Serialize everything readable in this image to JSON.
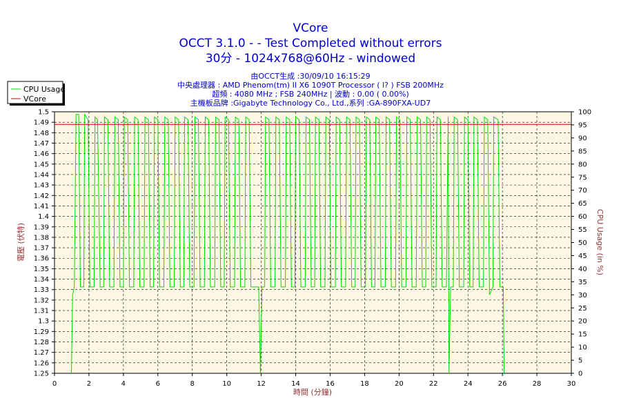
{
  "chart_data": {
    "type": "line",
    "title": "VCore",
    "subtitle_lines": [
      "OCCT 3.1.0 -   - Test Completed without errors",
      "30分 - 1024x768@60Hz - windowed"
    ],
    "info_lines": [
      "由OCCT生成 :30/09/10 16:15:29",
      "中央處理器 : AMD Phenom(tm) II X6 1090T Processor (   l? ) FSB 200MHz",
      "超頻 : 4080 MHz ; FSB 240MHz | 波動 : 0.00 ( 0.00%)",
      "主機板品牌 :Gigabyte Technology Co., Ltd.,系列 :GA-890FXA-UD7"
    ],
    "xlabel": "時間 (分鐘)",
    "ylabel_left": "電壓 (伏特)",
    "ylabel_right": "CPU Usage (in %)",
    "xlim": [
      0,
      30
    ],
    "ylim_left": [
      1.25,
      1.5
    ],
    "ylim_right": [
      0,
      100
    ],
    "x_ticks": [
      "0",
      "2",
      "4",
      "6",
      "8",
      "10",
      "12",
      "14",
      "16",
      "18",
      "20",
      "22",
      "24",
      "26",
      "28",
      "30"
    ],
    "y_left_ticks": [
      "1.5",
      "1.49",
      "1.48",
      "1.47",
      "1.46",
      "1.45",
      "1.44",
      "1.43",
      "1.42",
      "1.41",
      "1.4",
      "1.39",
      "1.38",
      "1.37",
      "1.36",
      "1.35",
      "1.34",
      "1.33",
      "1.32",
      "1.31",
      "1.3",
      "1.29",
      "1.28",
      "1.27",
      "1.26",
      "1.25"
    ],
    "y_right_ticks": [
      "100",
      "95",
      "90",
      "85",
      "80",
      "75",
      "70",
      "65",
      "60",
      "55",
      "50",
      "45",
      "40",
      "35",
      "30",
      "25",
      "20",
      "15",
      "10",
      "5",
      "0"
    ],
    "grid": true,
    "legend_position": "top-left",
    "series": [
      {
        "name": "CPU Usage",
        "axis": "right",
        "color": "#00dd00",
        "points": [
          [
            0.98,
            0
          ],
          [
            1.05,
            30
          ],
          [
            1.15,
            33
          ],
          [
            1.25,
            99
          ],
          [
            1.4,
            99
          ],
          [
            1.5,
            33
          ],
          [
            1.7,
            33
          ],
          [
            1.75,
            99
          ],
          [
            1.95,
            97
          ],
          [
            2.05,
            33
          ],
          [
            2.3,
            33
          ],
          [
            2.35,
            98
          ],
          [
            2.5,
            97
          ],
          [
            2.65,
            33
          ],
          [
            2.85,
            33
          ],
          [
            2.9,
            98
          ],
          [
            3.1,
            97
          ],
          [
            3.2,
            33
          ],
          [
            3.45,
            33
          ],
          [
            3.5,
            98
          ],
          [
            3.7,
            97
          ],
          [
            3.8,
            33
          ],
          [
            4.0,
            33
          ],
          [
            4.05,
            98
          ],
          [
            4.25,
            97
          ],
          [
            4.35,
            33
          ],
          [
            4.6,
            33
          ],
          [
            4.65,
            98
          ],
          [
            4.85,
            97
          ],
          [
            4.95,
            33
          ],
          [
            5.2,
            33
          ],
          [
            5.25,
            98
          ],
          [
            5.45,
            97
          ],
          [
            5.55,
            33
          ],
          [
            5.75,
            33
          ],
          [
            5.8,
            98
          ],
          [
            6.0,
            97
          ],
          [
            6.1,
            33
          ],
          [
            6.35,
            33
          ],
          [
            6.4,
            98
          ],
          [
            6.6,
            97
          ],
          [
            6.7,
            33
          ],
          [
            6.95,
            33
          ],
          [
            7.0,
            98
          ],
          [
            7.2,
            97
          ],
          [
            7.3,
            33
          ],
          [
            7.5,
            33
          ],
          [
            7.55,
            98
          ],
          [
            7.75,
            97
          ],
          [
            7.85,
            33
          ],
          [
            8.1,
            33
          ],
          [
            8.15,
            98
          ],
          [
            8.35,
            97
          ],
          [
            8.45,
            33
          ],
          [
            8.7,
            33
          ],
          [
            8.75,
            98
          ],
          [
            8.95,
            97
          ],
          [
            9.05,
            33
          ],
          [
            9.3,
            33
          ],
          [
            9.35,
            98
          ],
          [
            9.55,
            97
          ],
          [
            9.65,
            33
          ],
          [
            9.85,
            33
          ],
          [
            9.9,
            98
          ],
          [
            10.1,
            97
          ],
          [
            10.2,
            33
          ],
          [
            10.45,
            33
          ],
          [
            10.5,
            98
          ],
          [
            10.7,
            97
          ],
          [
            10.8,
            33
          ],
          [
            11.05,
            33
          ],
          [
            11.1,
            98
          ],
          [
            11.3,
            97
          ],
          [
            11.4,
            33
          ],
          [
            11.85,
            33
          ],
          [
            11.95,
            0
          ],
          [
            12.05,
            33
          ],
          [
            12.2,
            33
          ],
          [
            12.25,
            98
          ],
          [
            12.45,
            97
          ],
          [
            12.55,
            33
          ],
          [
            12.8,
            33
          ],
          [
            12.85,
            98
          ],
          [
            13.05,
            97
          ],
          [
            13.15,
            33
          ],
          [
            13.4,
            33
          ],
          [
            13.45,
            98
          ],
          [
            13.65,
            97
          ],
          [
            13.75,
            33
          ],
          [
            13.95,
            33
          ],
          [
            14.0,
            98
          ],
          [
            14.2,
            97
          ],
          [
            14.3,
            33
          ],
          [
            14.55,
            33
          ],
          [
            14.6,
            98
          ],
          [
            14.8,
            97
          ],
          [
            14.9,
            33
          ],
          [
            15.1,
            33
          ],
          [
            15.15,
            98
          ],
          [
            15.35,
            97
          ],
          [
            15.45,
            33
          ],
          [
            15.7,
            33
          ],
          [
            15.75,
            98
          ],
          [
            15.95,
            97
          ],
          [
            16.05,
            33
          ],
          [
            16.3,
            33
          ],
          [
            16.35,
            98
          ],
          [
            16.55,
            97
          ],
          [
            16.65,
            33
          ],
          [
            16.9,
            33
          ],
          [
            16.95,
            98
          ],
          [
            17.15,
            97
          ],
          [
            17.25,
            33
          ],
          [
            17.45,
            33
          ],
          [
            17.5,
            98
          ],
          [
            17.7,
            97
          ],
          [
            17.8,
            33
          ],
          [
            18.05,
            33
          ],
          [
            18.1,
            98
          ],
          [
            18.3,
            97
          ],
          [
            18.4,
            33
          ],
          [
            18.6,
            33
          ],
          [
            18.65,
            98
          ],
          [
            18.85,
            97
          ],
          [
            18.95,
            33
          ],
          [
            19.2,
            33
          ],
          [
            19.25,
            98
          ],
          [
            19.45,
            97
          ],
          [
            19.55,
            33
          ],
          [
            19.8,
            33
          ],
          [
            19.85,
            98
          ],
          [
            20.05,
            97
          ],
          [
            20.15,
            33
          ],
          [
            20.4,
            33
          ],
          [
            20.45,
            98
          ],
          [
            20.65,
            97
          ],
          [
            20.75,
            33
          ],
          [
            21.0,
            33
          ],
          [
            21.05,
            98
          ],
          [
            21.25,
            97
          ],
          [
            21.35,
            33
          ],
          [
            21.55,
            33
          ],
          [
            21.6,
            98
          ],
          [
            21.8,
            97
          ],
          [
            21.9,
            33
          ],
          [
            22.15,
            33
          ],
          [
            22.2,
            98
          ],
          [
            22.4,
            97
          ],
          [
            22.5,
            33
          ],
          [
            22.75,
            33
          ],
          [
            22.85,
            98
          ],
          [
            22.9,
            0
          ],
          [
            23.0,
            33
          ],
          [
            23.15,
            33
          ],
          [
            23.2,
            98
          ],
          [
            23.4,
            97
          ],
          [
            23.5,
            33
          ],
          [
            23.75,
            33
          ],
          [
            23.8,
            98
          ],
          [
            24.0,
            97
          ],
          [
            24.1,
            33
          ],
          [
            24.3,
            33
          ],
          [
            24.35,
            98
          ],
          [
            24.55,
            97
          ],
          [
            24.65,
            33
          ],
          [
            24.9,
            33
          ],
          [
            24.95,
            98
          ],
          [
            25.15,
            97
          ],
          [
            25.25,
            30
          ],
          [
            25.45,
            33
          ],
          [
            25.5,
            98
          ],
          [
            25.75,
            97
          ],
          [
            25.85,
            33
          ],
          [
            26.05,
            33
          ],
          [
            26.1,
            0
          ]
        ]
      },
      {
        "name": "VCore",
        "axis": "left",
        "color": "#cc0000",
        "points": [
          [
            0,
            1.488
          ],
          [
            30,
            1.488
          ]
        ]
      }
    ]
  }
}
